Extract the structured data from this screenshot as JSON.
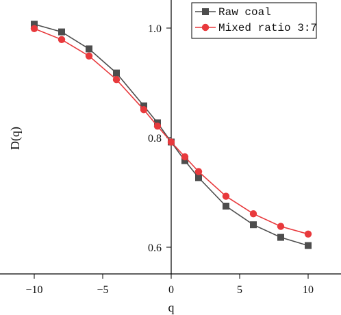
{
  "chart_data": {
    "type": "line",
    "title": "",
    "xlabel": "q",
    "ylabel": "D(q)",
    "xlim": [
      -12,
      12.5
    ],
    "ylim": [
      0.55,
      1.05
    ],
    "x_ticks": [
      -10,
      -5,
      0,
      5,
      10
    ],
    "x_tick_labels": [
      "−10",
      "−5",
      "0",
      "5",
      "10"
    ],
    "y_ticks": [
      0.6,
      0.8,
      1.0
    ],
    "y_tick_labels": [
      "0.6",
      "0.8",
      "1.0"
    ],
    "grid": false,
    "legend_position": "top-right",
    "x": [
      -10,
      -8,
      -6,
      -4,
      -2,
      -1,
      0,
      1,
      2,
      4,
      6,
      8,
      10
    ],
    "series": [
      {
        "name": "Raw coal",
        "marker": "square",
        "color": "#4d4d4d",
        "values": [
          1.007,
          0.993,
          0.962,
          0.918,
          0.858,
          0.827,
          0.792,
          0.758,
          0.727,
          0.675,
          0.641,
          0.618,
          0.603
        ]
      },
      {
        "name": "Mixed ratio 3:7",
        "marker": "circle",
        "color": "#e8393c",
        "values": [
          0.999,
          0.979,
          0.949,
          0.906,
          0.851,
          0.821,
          0.792,
          0.765,
          0.738,
          0.693,
          0.661,
          0.638,
          0.624
        ]
      }
    ]
  }
}
